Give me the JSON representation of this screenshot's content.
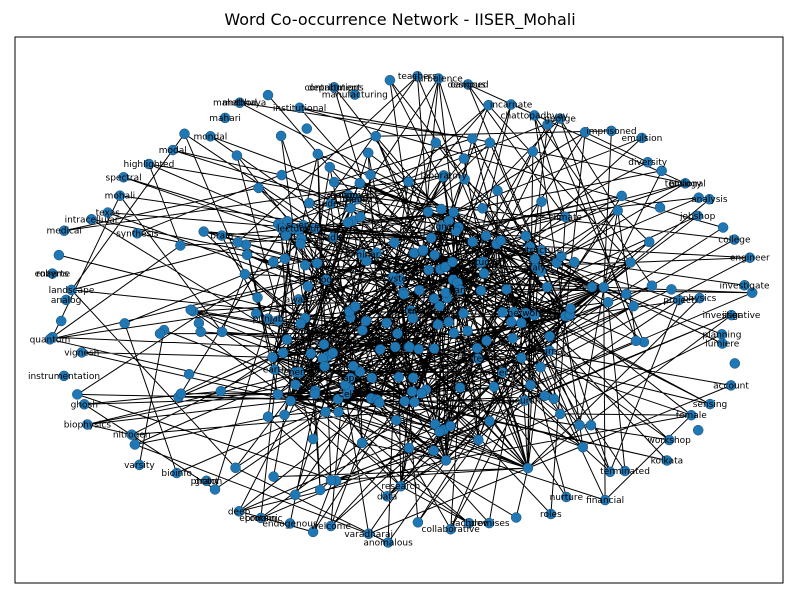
{
  "figure": {
    "title": "Word Co-occurrence Network - IISER_Mohali"
  },
  "colors": {
    "node": "#1f77b4",
    "node_edge": "#174a73",
    "edge": "#000000",
    "frame": "#000000",
    "background": "#ffffff"
  },
  "graph": {
    "labels": [
      "investigative",
      "planning",
      "lumiere",
      "account",
      "sensing",
      "female",
      "workshop",
      "kolkata",
      "terminated",
      "financial",
      "nurture",
      "roles",
      "promises",
      "sachdev",
      "collaborative",
      "anomalous",
      "varadharaj",
      "welcome",
      "endogenous",
      "economic",
      "deep",
      "photon",
      "bioinfo",
      "varsity",
      "nitrogen",
      "biophysics",
      "ghosh",
      "instrumentation",
      "vignesh",
      "quantum",
      "analog",
      "landscape",
      "roberts",
      "medical",
      "intracellular",
      "texas",
      "spectral",
      "highlighted",
      "modal",
      "mondal",
      "mahari",
      "mahabhaya",
      "institutional",
      "contributions",
      "manufacturing",
      "teachers",
      "turbulence",
      "designed",
      "incarnate",
      "chattopadhyay",
      "george",
      "imprisoned",
      "emulsion",
      "diversity",
      "tensional",
      "analysis",
      "jobshop",
      "college",
      "engineer",
      "investigate",
      "mohali",
      "iiser",
      "science",
      "research",
      "physics",
      "chemistry",
      "biology",
      "department",
      "student",
      "faculty",
      "professor",
      "laboratory",
      "data",
      "model",
      "network",
      "theory",
      "energy",
      "cell",
      "protein",
      "genome",
      "molecule",
      "structure",
      "dynamics",
      "system",
      "method",
      "study",
      "journal",
      "paper",
      "award",
      "grant",
      "project",
      "seminar",
      "lecture",
      "course",
      "campus",
      "punjab",
      "india",
      "nano",
      "material",
      "synthesis",
      "catalyst",
      "enzyme",
      "signal",
      "neuron",
      "brain",
      "climate",
      "earth"
    ]
  }
}
